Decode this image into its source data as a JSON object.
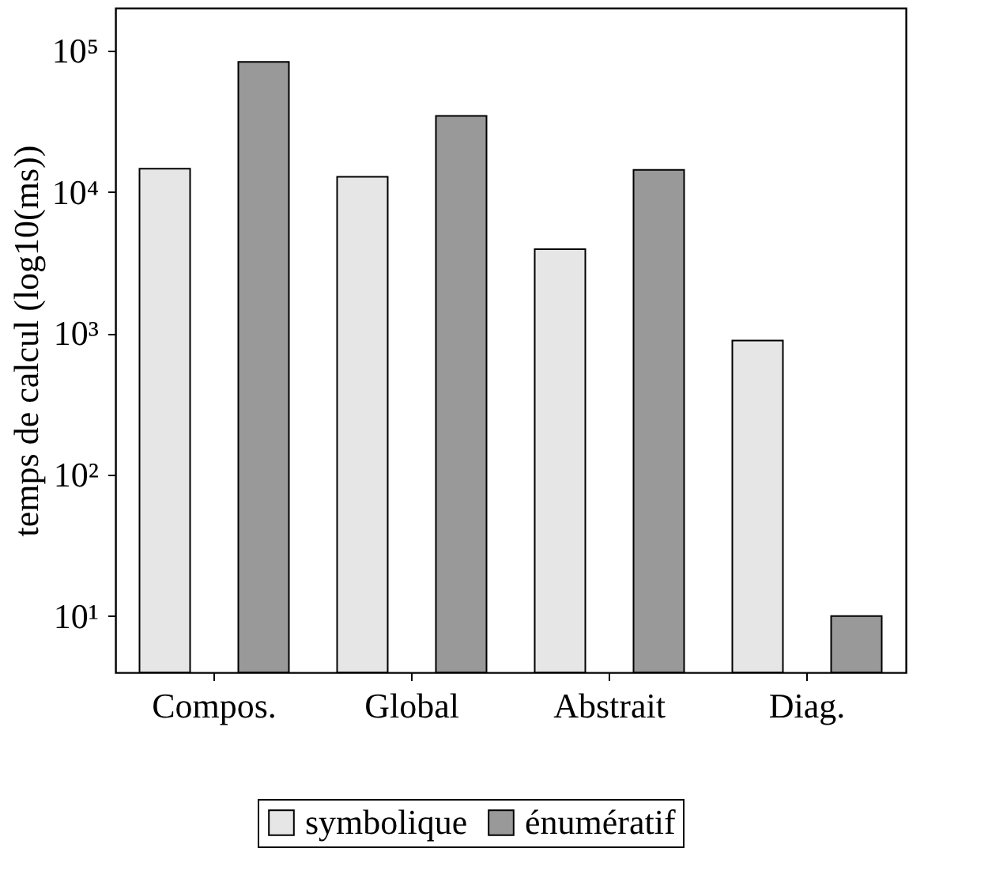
{
  "chart_data": {
    "type": "bar",
    "ylabel": "temps de calcul (log10(ms))",
    "categories": [
      "Compos.",
      "Global",
      "Abstrait",
      "Diag."
    ],
    "series": [
      {
        "name": "symbolique",
        "color": "#e6e6e6",
        "values": [
          14600,
          12800,
          3940,
          890
        ]
      },
      {
        "name": "énumératif",
        "color": "#999999",
        "values": [
          83000,
          34500,
          14300,
          10
        ]
      }
    ],
    "log": true,
    "ylim": [
      4,
      200000
    ],
    "yticks": [
      {
        "value": 10,
        "label": "10¹"
      },
      {
        "value": 100,
        "label": "10²"
      },
      {
        "value": 1000,
        "label": "10³"
      },
      {
        "value": 10000,
        "label": "10⁴"
      },
      {
        "value": 100000,
        "label": "10⁵"
      }
    ],
    "grid": false,
    "legend": "bottom"
  }
}
